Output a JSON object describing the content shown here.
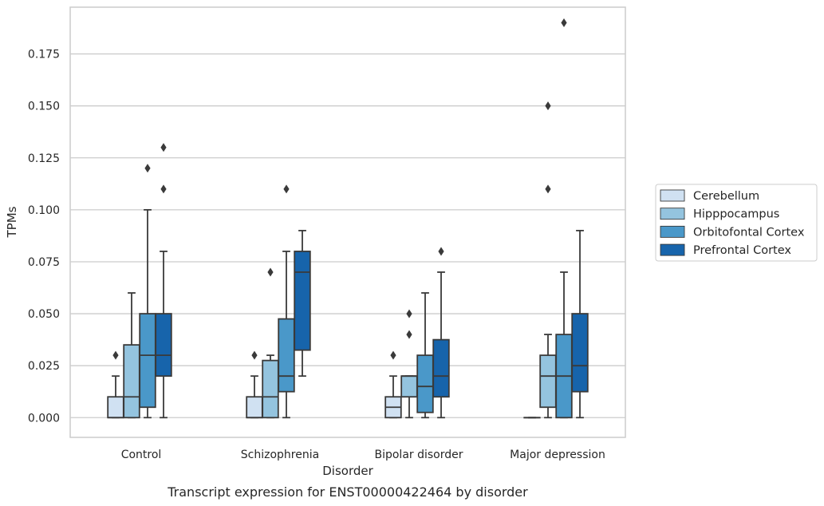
{
  "chart_data": {
    "type": "box",
    "caption": "Transcript expression for ENST00000422464 by disorder",
    "xlabel": "Disorder",
    "ylabel": "TPMs",
    "ylim": [
      -0.0095,
      0.1975
    ],
    "yticks": [
      0.0,
      0.025,
      0.05,
      0.075,
      0.1,
      0.125,
      0.15,
      0.175
    ],
    "ytick_labels": [
      "0.000",
      "0.025",
      "0.050",
      "0.075",
      "0.100",
      "0.125",
      "0.150",
      "0.175"
    ],
    "grid": true,
    "legend_position": "right",
    "categories": [
      "Control",
      "Schizophrenia",
      "Bipolar disorder",
      "Major depression"
    ],
    "series": [
      {
        "name": "Cerebellum",
        "color": "#d0e1f2",
        "boxes": [
          {
            "whislo": 0.0,
            "q1": 0.0,
            "med": 0.0,
            "q3": 0.01,
            "whishi": 0.02,
            "fliers": [
              0.03
            ]
          },
          {
            "whislo": 0.0,
            "q1": 0.0,
            "med": 0.0,
            "q3": 0.01,
            "whishi": 0.02,
            "fliers": [
              0.03
            ]
          },
          {
            "whislo": 0.0,
            "q1": 0.0,
            "med": 0.005,
            "q3": 0.01,
            "whishi": 0.02,
            "fliers": [
              0.03
            ]
          },
          {
            "whislo": 0.0,
            "q1": 0.0,
            "med": 0.0,
            "q3": 0.0,
            "whishi": 0.0,
            "fliers": []
          }
        ]
      },
      {
        "name": "Hipppocampus",
        "color": "#94c4df",
        "boxes": [
          {
            "whislo": 0.0,
            "q1": 0.0,
            "med": 0.01,
            "q3": 0.035,
            "whishi": 0.06,
            "fliers": []
          },
          {
            "whislo": 0.0,
            "q1": 0.0,
            "med": 0.01,
            "q3": 0.0275,
            "whishi": 0.03,
            "fliers": [
              0.07
            ]
          },
          {
            "whislo": 0.0,
            "q1": 0.01,
            "med": 0.02,
            "q3": 0.02,
            "whishi": 0.02,
            "fliers": [
              0.04,
              0.05
            ]
          },
          {
            "whislo": 0.0,
            "q1": 0.005,
            "med": 0.02,
            "q3": 0.03,
            "whishi": 0.04,
            "fliers": [
              0.11,
              0.15
            ]
          }
        ]
      },
      {
        "name": "Orbitofontal Cortex",
        "color": "#4a98c9",
        "boxes": [
          {
            "whislo": 0.0,
            "q1": 0.005,
            "med": 0.03,
            "q3": 0.05,
            "whishi": 0.1,
            "fliers": [
              0.12
            ]
          },
          {
            "whislo": 0.0,
            "q1": 0.0125,
            "med": 0.02,
            "q3": 0.0475,
            "whishi": 0.08,
            "fliers": [
              0.11
            ]
          },
          {
            "whislo": 0.0,
            "q1": 0.0025,
            "med": 0.015,
            "q3": 0.03,
            "whishi": 0.06,
            "fliers": []
          },
          {
            "whislo": 0.0,
            "q1": 0.0,
            "med": 0.02,
            "q3": 0.04,
            "whishi": 0.07,
            "fliers": [
              0.19
            ]
          }
        ]
      },
      {
        "name": "Prefrontal Cortex",
        "color": "#1764ab",
        "boxes": [
          {
            "whislo": 0.0,
            "q1": 0.02,
            "med": 0.03,
            "q3": 0.05,
            "whishi": 0.08,
            "fliers": [
              0.11,
              0.13
            ]
          },
          {
            "whislo": 0.02,
            "q1": 0.0325,
            "med": 0.07,
            "q3": 0.08,
            "whishi": 0.09,
            "fliers": []
          },
          {
            "whislo": 0.0,
            "q1": 0.01,
            "med": 0.02,
            "q3": 0.0375,
            "whishi": 0.07,
            "fliers": [
              0.08
            ]
          },
          {
            "whislo": 0.0,
            "q1": 0.0125,
            "med": 0.025,
            "q3": 0.05,
            "whishi": 0.09,
            "fliers": []
          }
        ]
      }
    ]
  }
}
